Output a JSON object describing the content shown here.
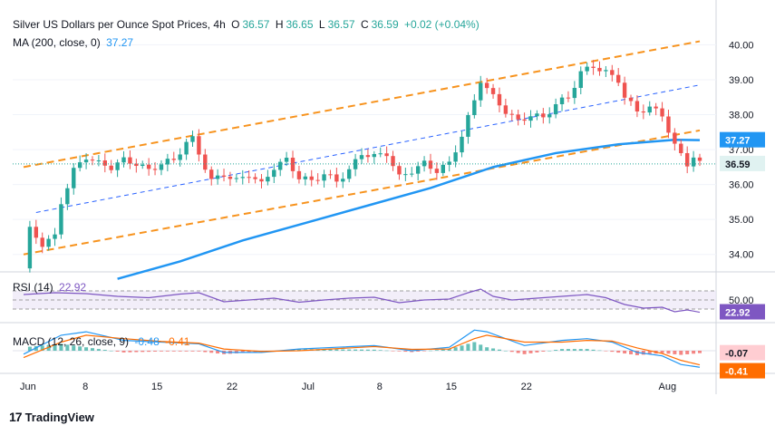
{
  "header": {
    "title": "Silver US Dollars per Ounce Spot Prices, 4h",
    "open_label": "O",
    "open": "36.57",
    "high_label": "H",
    "high": "36.65",
    "low_label": "L",
    "low": "36.57",
    "close_label": "C",
    "close": "36.59",
    "change": "+0.02 (+0.04%)",
    "ma_label": "MA (200, close, 0)",
    "ma_value": "37.27",
    "rsi_label": "RSI (14)",
    "rsi_value_inline": "22.92",
    "macd_label": "MACD (12, 26, close, 9)",
    "macd_val1": "-0.48",
    "macd_val2": "-0.41"
  },
  "brand": {
    "name": "TradingView",
    "mark": "17"
  },
  "colors": {
    "up": "#26a69a",
    "down": "#ef5350",
    "channel": "#f7931e",
    "trend_dashed": "#2962ff",
    "ma": "#2196f3",
    "rsi": "#7e57c2",
    "macd_line": "#2196f3",
    "signal_line": "#ff6d00"
  },
  "chart_data": [
    {
      "type": "candlestick",
      "name": "price",
      "y_ticks": [
        "40.00",
        "39.00",
        "38.00",
        "37.00",
        "36.00",
        "35.00",
        "34.00"
      ],
      "ylim": [
        33.5,
        40.4
      ],
      "x_ticks": [
        "Jun",
        "8",
        "15",
        "22",
        "Jul",
        "8",
        "15",
        "22",
        "Aug"
      ],
      "current_price": "36.59",
      "ma_current": "37.27",
      "close_path": [
        [
          0,
          33.6
        ],
        [
          1,
          34.7
        ],
        [
          3,
          34.3
        ],
        [
          5,
          34.5
        ],
        [
          6,
          35.5
        ],
        [
          8,
          36.4
        ],
        [
          10,
          36.8
        ],
        [
          12,
          36.6
        ],
        [
          14,
          36.5
        ],
        [
          16,
          36.7
        ],
        [
          18,
          36.6
        ],
        [
          20,
          36.4
        ],
        [
          22,
          36.6
        ],
        [
          24,
          36.7
        ],
        [
          26,
          37.2
        ],
        [
          27,
          37.3
        ],
        [
          28,
          36.9
        ],
        [
          30,
          36.1
        ],
        [
          32,
          36.3
        ],
        [
          34,
          36.1
        ],
        [
          36,
          36.3
        ],
        [
          38,
          36.0
        ],
        [
          40,
          36.5
        ],
        [
          42,
          36.7
        ],
        [
          44,
          36.2
        ],
        [
          46,
          36.1
        ],
        [
          48,
          36.3
        ],
        [
          50,
          36.1
        ],
        [
          52,
          36.4
        ],
        [
          54,
          36.9
        ],
        [
          56,
          36.8
        ],
        [
          58,
          36.9
        ],
        [
          60,
          36.2
        ],
        [
          62,
          36.4
        ],
        [
          64,
          36.6
        ],
        [
          66,
          36.4
        ],
        [
          68,
          36.6
        ],
        [
          70,
          37.4
        ],
        [
          72,
          38.4
        ],
        [
          73,
          39.0
        ],
        [
          75,
          38.5
        ],
        [
          77,
          38.1
        ],
        [
          79,
          37.8
        ],
        [
          81,
          38.0
        ],
        [
          83,
          37.9
        ],
        [
          85,
          38.3
        ],
        [
          87,
          38.5
        ],
        [
          89,
          39.2
        ],
        [
          91,
          39.4
        ],
        [
          93,
          39.2
        ],
        [
          95,
          39.0
        ],
        [
          96,
          38.5
        ],
        [
          98,
          38.1
        ],
        [
          100,
          38.2
        ],
        [
          102,
          38.0
        ],
        [
          104,
          37.1
        ],
        [
          106,
          36.6
        ],
        [
          107,
          36.8
        ],
        [
          108,
          36.59
        ]
      ],
      "ma200": [
        [
          15,
          33.3
        ],
        [
          25,
          33.8
        ],
        [
          35,
          34.4
        ],
        [
          45,
          34.9
        ],
        [
          55,
          35.4
        ],
        [
          65,
          35.9
        ],
        [
          75,
          36.5
        ],
        [
          85,
          36.9
        ],
        [
          95,
          37.15
        ],
        [
          104,
          37.28
        ],
        [
          108,
          37.27
        ]
      ],
      "channel_upper": [
        [
          0,
          36.5
        ],
        [
          108,
          40.1
        ]
      ],
      "channel_lower": [
        [
          0,
          34.0
        ],
        [
          108,
          37.55
        ]
      ],
      "trend_dashed": [
        [
          2,
          35.2
        ],
        [
          108,
          38.85
        ]
      ]
    },
    {
      "type": "line",
      "name": "RSI (14)",
      "y_ticks": [
        "50.00"
      ],
      "bands": [
        70,
        30
      ],
      "current": "22.92",
      "values": [
        [
          0,
          62
        ],
        [
          5,
          66
        ],
        [
          10,
          64
        ],
        [
          15,
          58
        ],
        [
          20,
          55
        ],
        [
          25,
          63
        ],
        [
          28,
          66
        ],
        [
          32,
          46
        ],
        [
          36,
          50
        ],
        [
          40,
          54
        ],
        [
          44,
          45
        ],
        [
          48,
          50
        ],
        [
          52,
          54
        ],
        [
          56,
          56
        ],
        [
          60,
          44
        ],
        [
          64,
          50
        ],
        [
          68,
          52
        ],
        [
          71,
          66
        ],
        [
          73,
          74
        ],
        [
          75,
          58
        ],
        [
          78,
          50
        ],
        [
          82,
          54
        ],
        [
          86,
          58
        ],
        [
          90,
          62
        ],
        [
          93,
          55
        ],
        [
          96,
          40
        ],
        [
          99,
          32
        ],
        [
          102,
          34
        ],
        [
          104,
          24
        ],
        [
          106,
          28
        ],
        [
          108,
          22.92
        ]
      ]
    },
    {
      "type": "macd",
      "name": "MACD (12, 26, close, 9)",
      "current_hist": "-0.07",
      "current_signal": "-0.41",
      "macd": [
        [
          0,
          -0.1
        ],
        [
          6,
          0.45
        ],
        [
          10,
          0.55
        ],
        [
          16,
          0.3
        ],
        [
          22,
          0.25
        ],
        [
          28,
          0.2
        ],
        [
          32,
          -0.05
        ],
        [
          38,
          -0.05
        ],
        [
          44,
          0.05
        ],
        [
          50,
          0.1
        ],
        [
          56,
          0.15
        ],
        [
          62,
          0.0
        ],
        [
          68,
          0.1
        ],
        [
          72,
          0.6
        ],
        [
          74,
          0.55
        ],
        [
          80,
          0.15
        ],
        [
          86,
          0.3
        ],
        [
          90,
          0.35
        ],
        [
          94,
          0.25
        ],
        [
          98,
          -0.05
        ],
        [
          102,
          -0.15
        ],
        [
          105,
          -0.4
        ],
        [
          108,
          -0.48
        ]
      ],
      "signal": [
        [
          0,
          -0.2
        ],
        [
          6,
          0.25
        ],
        [
          10,
          0.45
        ],
        [
          16,
          0.35
        ],
        [
          22,
          0.27
        ],
        [
          28,
          0.22
        ],
        [
          32,
          0.05
        ],
        [
          38,
          -0.02
        ],
        [
          44,
          0.0
        ],
        [
          50,
          0.06
        ],
        [
          56,
          0.12
        ],
        [
          62,
          0.04
        ],
        [
          68,
          0.05
        ],
        [
          72,
          0.35
        ],
        [
          74,
          0.45
        ],
        [
          80,
          0.25
        ],
        [
          86,
          0.25
        ],
        [
          90,
          0.3
        ],
        [
          94,
          0.28
        ],
        [
          98,
          0.08
        ],
        [
          102,
          -0.08
        ],
        [
          105,
          -0.28
        ],
        [
          108,
          -0.41
        ]
      ]
    }
  ]
}
